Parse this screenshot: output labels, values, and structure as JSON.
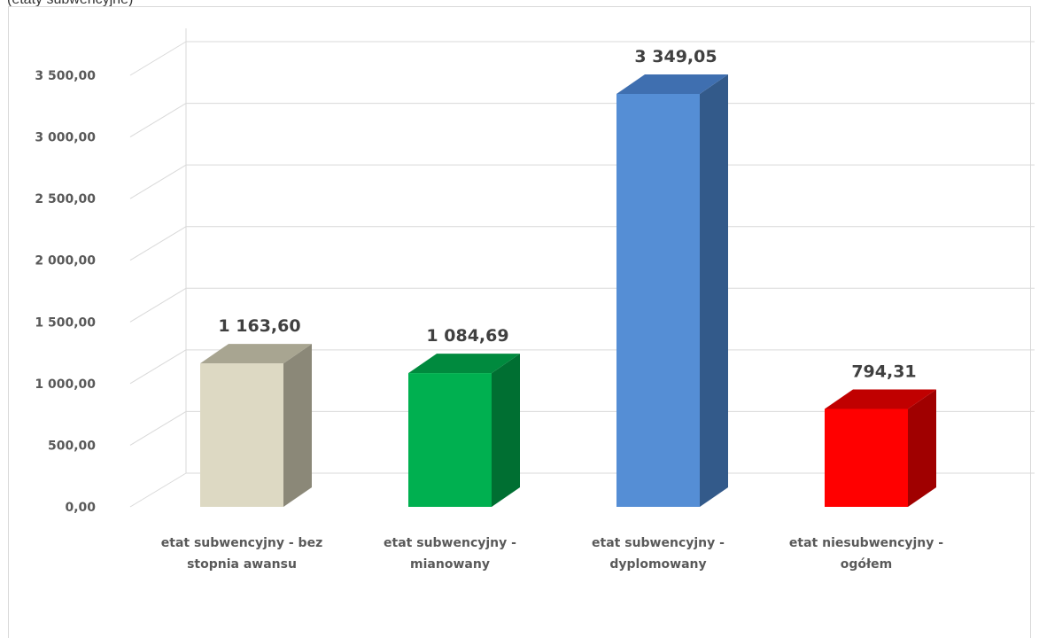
{
  "caption": "(etaty subwencyjne)",
  "chart_data": {
    "type": "bar",
    "categories": [
      [
        "etat subwencyjny - bez",
        "stopnia awansu"
      ],
      [
        "etat subwencyjny -",
        "mianowany"
      ],
      [
        "etat subwencyjny -",
        "dyplomowany"
      ],
      [
        "etat niesubwencyjny -",
        "ogółem"
      ]
    ],
    "values": [
      1163.6,
      1084.69,
      3349.05,
      794.31
    ],
    "value_labels": [
      "1 163,60",
      "1 084,69",
      "3 349,05",
      "794,31"
    ],
    "ylim": [
      0,
      3500
    ],
    "yticks": [
      0,
      500,
      1000,
      1500,
      2000,
      2500,
      3000,
      3500
    ],
    "ytick_labels": [
      "0,00",
      "500,00",
      "1 000,00",
      "1 500,00",
      "2 000,00",
      "2 500,00",
      "3 000,00",
      "3 500,00"
    ],
    "bar_colors": [
      {
        "front": "#ddd9c3",
        "side": "#8b8878",
        "top": "#a8a591"
      },
      {
        "front": "#00b050",
        "side": "#006f32",
        "top": "#008a3e"
      },
      {
        "front": "#558ed5",
        "side": "#335a8a",
        "top": "#3f6fb0"
      },
      {
        "front": "#ff0000",
        "side": "#a00000",
        "top": "#c00000"
      }
    ],
    "grid": true,
    "legend": "none"
  }
}
